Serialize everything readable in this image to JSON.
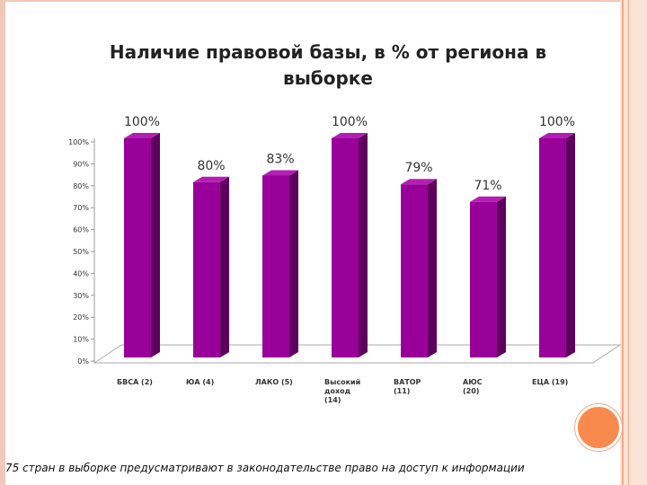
{
  "chart_data": {
    "type": "bar",
    "title": "Наличие правовой базы, в % от региона в выборке",
    "categories": [
      [
        "БВСА (2)"
      ],
      [
        "ЮА (4)"
      ],
      [
        "ЛАКО (5)"
      ],
      [
        "Высокий",
        "доход",
        "(14)"
      ],
      [
        "ВАТОР",
        "(11)"
      ],
      [
        "АЮС",
        "(20)"
      ],
      [
        "ЕЦА (19)"
      ]
    ],
    "values": [
      100,
      80,
      83,
      100,
      79,
      71,
      100
    ],
    "data_labels": [
      "100%",
      "80%",
      "83%",
      "100%",
      "79%",
      "71%",
      "100%"
    ],
    "yticks": [
      "0%",
      "10%",
      "20%",
      "30%",
      "40%",
      "50%",
      "60%",
      "70%",
      "80%",
      "90%",
      "100%"
    ],
    "ylim": [
      0,
      100
    ],
    "xlabel": "",
    "ylabel": "",
    "colors": {
      "bar_front": "#990099",
      "bar_side": "#5e005e",
      "bar_top": "#b21fb2"
    }
  },
  "caption": "75 стран в выборке предусматривают в законодательстве право на доступ к информации"
}
